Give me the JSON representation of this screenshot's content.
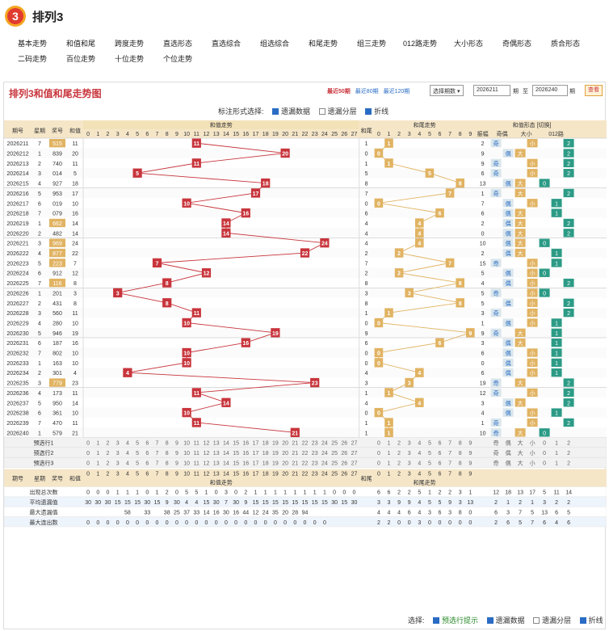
{
  "app": {
    "title": "排列3",
    "logo_text": "3"
  },
  "nav": {
    "row1": [
      "基本走势",
      "和值和尾",
      "跨度走势",
      "直选形态",
      "直选综合",
      "组选综合",
      "和尾走势",
      "组三走势",
      "012路走势",
      "大小形态",
      "奇偶形态",
      "质合形态"
    ],
    "row2": [
      "二码走势",
      "百位走势",
      "十位走势",
      "个位走势"
    ]
  },
  "panel": {
    "title": "排列3和值和尾走势图",
    "ranges": [
      "最近50期",
      "最近80期",
      "最近120期"
    ],
    "period_select": "选择期数",
    "from": "2026211",
    "from_label": "期",
    "to_sep": "至",
    "to": "2026240",
    "to_label": "期",
    "query": "查看"
  },
  "options": {
    "label": "标注形式选择:",
    "items": [
      "遗漏数据",
      "遗漏分层",
      "折线"
    ]
  },
  "headers": {
    "issue": "期号",
    "week": "星期",
    "prize": "奖号",
    "sum": "和值",
    "sum_trend": "和值走势",
    "tail": "和尾",
    "tail_trend": "和尾走势",
    "shape": "和值形态",
    "switch": "切换",
    "amp": "振幅",
    "oe": "奇偶",
    "bs": "大小",
    "r012": "012路",
    "odd": "奇",
    "even": "偶",
    "big": "大",
    "small": "小"
  },
  "rows": [
    {
      "issue": "2026211",
      "week": "7",
      "prize": "515",
      "sum": 11
    },
    {
      "issue": "2026212",
      "week": "1",
      "prize": "839",
      "sum": 20
    },
    {
      "issue": "2026213",
      "week": "2",
      "prize": "740",
      "sum": 11
    },
    {
      "issue": "2026214",
      "week": "3",
      "prize": "014",
      "sum": 5
    },
    {
      "issue": "2026215",
      "week": "4",
      "prize": "927",
      "sum": 18
    },
    {
      "issue": "2026216",
      "week": "5",
      "prize": "953",
      "sum": 17
    },
    {
      "issue": "2026217",
      "week": "6",
      "prize": "019",
      "sum": 10
    },
    {
      "issue": "2026218",
      "week": "7",
      "prize": "079",
      "sum": 16
    },
    {
      "issue": "2026219",
      "week": "1",
      "prize": "662",
      "sum": 14
    },
    {
      "issue": "2026220",
      "week": "2",
      "prize": "482",
      "sum": 14
    },
    {
      "issue": "2026221",
      "week": "3",
      "prize": "969",
      "sum": 24
    },
    {
      "issue": "2026222",
      "week": "4",
      "prize": "877",
      "sum": 22
    },
    {
      "issue": "2026223",
      "week": "5",
      "prize": "223",
      "sum": 7
    },
    {
      "issue": "2026224",
      "week": "6",
      "prize": "912",
      "sum": 12
    },
    {
      "issue": "2026225",
      "week": "7",
      "prize": "116",
      "sum": 8
    },
    {
      "issue": "2026226",
      "week": "1",
      "prize": "201",
      "sum": 3
    },
    {
      "issue": "2026227",
      "week": "2",
      "prize": "431",
      "sum": 8
    },
    {
      "issue": "2026228",
      "week": "3",
      "prize": "560",
      "sum": 11
    },
    {
      "issue": "2026229",
      "week": "4",
      "prize": "280",
      "sum": 10
    },
    {
      "issue": "2026230",
      "week": "5",
      "prize": "946",
      "sum": 19
    },
    {
      "issue": "2026231",
      "week": "6",
      "prize": "187",
      "sum": 16
    },
    {
      "issue": "2026232",
      "week": "7",
      "prize": "802",
      "sum": 10
    },
    {
      "issue": "2026233",
      "week": "1",
      "prize": "163",
      "sum": 10
    },
    {
      "issue": "2026234",
      "week": "2",
      "prize": "301",
      "sum": 4
    },
    {
      "issue": "2026235",
      "week": "3",
      "prize": "779",
      "sum": 23
    },
    {
      "issue": "2026236",
      "week": "4",
      "prize": "173",
      "sum": 11
    },
    {
      "issue": "2026237",
      "week": "5",
      "prize": "950",
      "sum": 14
    },
    {
      "issue": "2026238",
      "week": "6",
      "prize": "361",
      "sum": 10
    },
    {
      "issue": "2026239",
      "week": "7",
      "prize": "470",
      "sum": 11
    },
    {
      "issue": "2026240",
      "week": "1",
      "prize": "579",
      "sum": 21
    }
  ],
  "group_prizes": [
    "515",
    "662",
    "969",
    "877",
    "223",
    "116",
    "779"
  ],
  "predict": [
    "预选行1",
    "预选行2",
    "预选行3"
  ],
  "stats": {
    "labels": [
      "出现总次数",
      "平均遗漏值",
      "最大遗漏值",
      "最大连出数"
    ],
    "sum_appear": [
      0,
      0,
      0,
      1,
      1,
      1,
      0,
      1,
      2,
      0,
      5,
      5,
      1,
      0,
      3,
      0,
      2,
      1,
      1,
      1,
      1,
      1,
      1,
      1,
      1,
      0,
      0,
      0
    ],
    "sum_avg": [
      30,
      30,
      30,
      15,
      15,
      15,
      30,
      15,
      9,
      30,
      4,
      4,
      15,
      30,
      7,
      30,
      9,
      15,
      15,
      15,
      15,
      15,
      15,
      15,
      15,
      30,
      15,
      30
    ],
    "sum_max": [
      "",
      "",
      "",
      "",
      "58",
      "",
      "33",
      "",
      "38",
      "25",
      "37",
      "33",
      "14",
      "16",
      "30",
      "16",
      "44",
      "12",
      "24",
      "35",
      "20",
      "28",
      "94",
      "",
      ""
    ],
    "tail_appear": [
      6,
      6,
      2,
      2,
      5,
      1,
      2,
      2,
      3,
      1
    ],
    "tail_avg": [
      3,
      3,
      9,
      9,
      4,
      5,
      5,
      9,
      3,
      13
    ],
    "tail_max": [
      4,
      4,
      4,
      6,
      4,
      3,
      6,
      3,
      8,
      0
    ],
    "tail_cons": [
      2,
      2,
      0,
      0,
      3,
      0,
      0,
      0,
      0,
      0
    ],
    "shape_appear": [
      12,
      18,
      13,
      17,
      5,
      11,
      14
    ],
    "shape_avg": [
      2,
      1,
      2,
      1,
      3,
      2,
      2
    ],
    "shape_max": [
      6,
      3,
      7,
      5,
      13,
      6,
      5
    ],
    "shape_cons": [
      2,
      6,
      5,
      7,
      6,
      4,
      6
    ]
  },
  "footer": {
    "label": "选择:",
    "items": [
      "预选行提示",
      "遗漏数据",
      "遗漏分层",
      "折线"
    ]
  },
  "colors": {
    "accent": "#c8353c",
    "tail_ball": "#e1b362",
    "odd": "#d9e6ec",
    "shape_big": "#e1b362",
    "r012": "#2c9b86"
  }
}
